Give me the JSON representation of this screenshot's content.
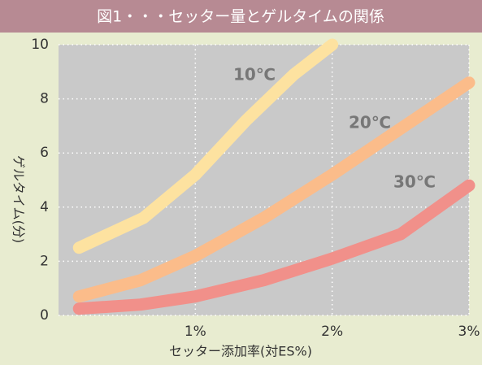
{
  "chart_data": {
    "type": "line",
    "title": "図1・・・セッター量とゲルタイムの関係",
    "x_label": "セッター添加率(対ES%)",
    "y_label": "ゲルタイム(分)",
    "xlim": [
      0,
      3
    ],
    "xticks": [
      {
        "value": 1,
        "label": "1%"
      },
      {
        "value": 2,
        "label": "2%"
      },
      {
        "value": 3,
        "label": "3%"
      }
    ],
    "ylim": [
      0,
      10
    ],
    "yticks": [
      0,
      2,
      4,
      6,
      8,
      10
    ],
    "grid": true,
    "series": [
      {
        "name": "10℃",
        "color": "#fde2a0",
        "x": [
          0.15,
          0.62,
          1.0,
          1.37,
          1.72,
          2.0
        ],
        "values": [
          2.5,
          3.6,
          5.2,
          7.2,
          8.9,
          10
        ]
      },
      {
        "name": "20℃",
        "color": "#fbbc8a",
        "x": [
          0.15,
          0.6,
          1.0,
          1.5,
          2.0,
          2.5,
          3.0
        ],
        "values": [
          0.7,
          1.3,
          2.2,
          3.6,
          5.2,
          6.9,
          8.6
        ]
      },
      {
        "name": "30℃",
        "color": "#f1908a",
        "x": [
          0.15,
          0.6,
          1.0,
          1.5,
          2.0,
          2.5,
          3.0
        ],
        "values": [
          0.25,
          0.4,
          0.7,
          1.3,
          2.1,
          3.0,
          4.8
        ]
      }
    ]
  }
}
